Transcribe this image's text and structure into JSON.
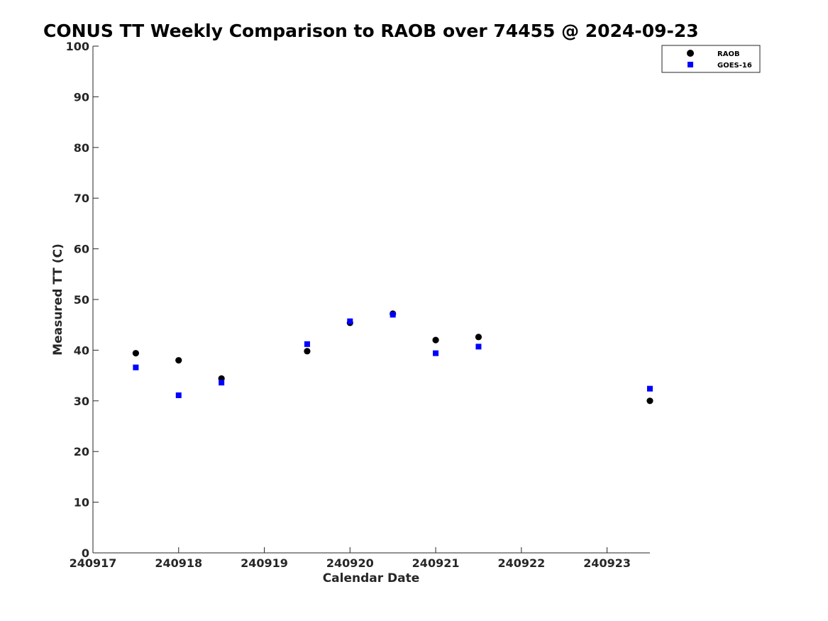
{
  "chart_data": {
    "type": "scatter",
    "title": "CONUS TT Weekly Comparison to RAOB over 74455 @ 2024-09-23",
    "xlabel": "Calendar Date",
    "ylabel": "Measured TT (C)",
    "xlim": [
      240917,
      240923.5
    ],
    "ylim": [
      0,
      100
    ],
    "xticks": [
      240917,
      240918,
      240919,
      240920,
      240921,
      240922,
      240923
    ],
    "xtick_labels": [
      "240917",
      "240918",
      "240919",
      "240920",
      "240921",
      "240922",
      "240923"
    ],
    "yticks": [
      0,
      10,
      20,
      30,
      40,
      50,
      60,
      70,
      80,
      90,
      100
    ],
    "ytick_labels": [
      "0",
      "10",
      "20",
      "30",
      "40",
      "50",
      "60",
      "70",
      "80",
      "90",
      "100"
    ],
    "grid": false,
    "legend_position": "top-right",
    "series": [
      {
        "name": "RAOB",
        "marker": "circle",
        "color": "#000000",
        "points": [
          [
            240917.5,
            39.4
          ],
          [
            240918.0,
            38.0
          ],
          [
            240918.5,
            34.4
          ],
          [
            240919.5,
            39.8
          ],
          [
            240920.0,
            45.4
          ],
          [
            240920.5,
            47.2
          ],
          [
            240921.0,
            42.0
          ],
          [
            240921.5,
            42.6
          ],
          [
            240923.5,
            30.0
          ]
        ]
      },
      {
        "name": "GOES-16",
        "marker": "square",
        "color": "#0000ff",
        "points": [
          [
            240917.5,
            36.6
          ],
          [
            240918.0,
            31.1
          ],
          [
            240918.5,
            33.6
          ],
          [
            240919.5,
            41.2
          ],
          [
            240920.0,
            45.7
          ],
          [
            240920.5,
            47.0
          ],
          [
            240921.0,
            39.4
          ],
          [
            240921.5,
            40.7
          ],
          [
            240923.5,
            32.4
          ]
        ]
      }
    ]
  }
}
